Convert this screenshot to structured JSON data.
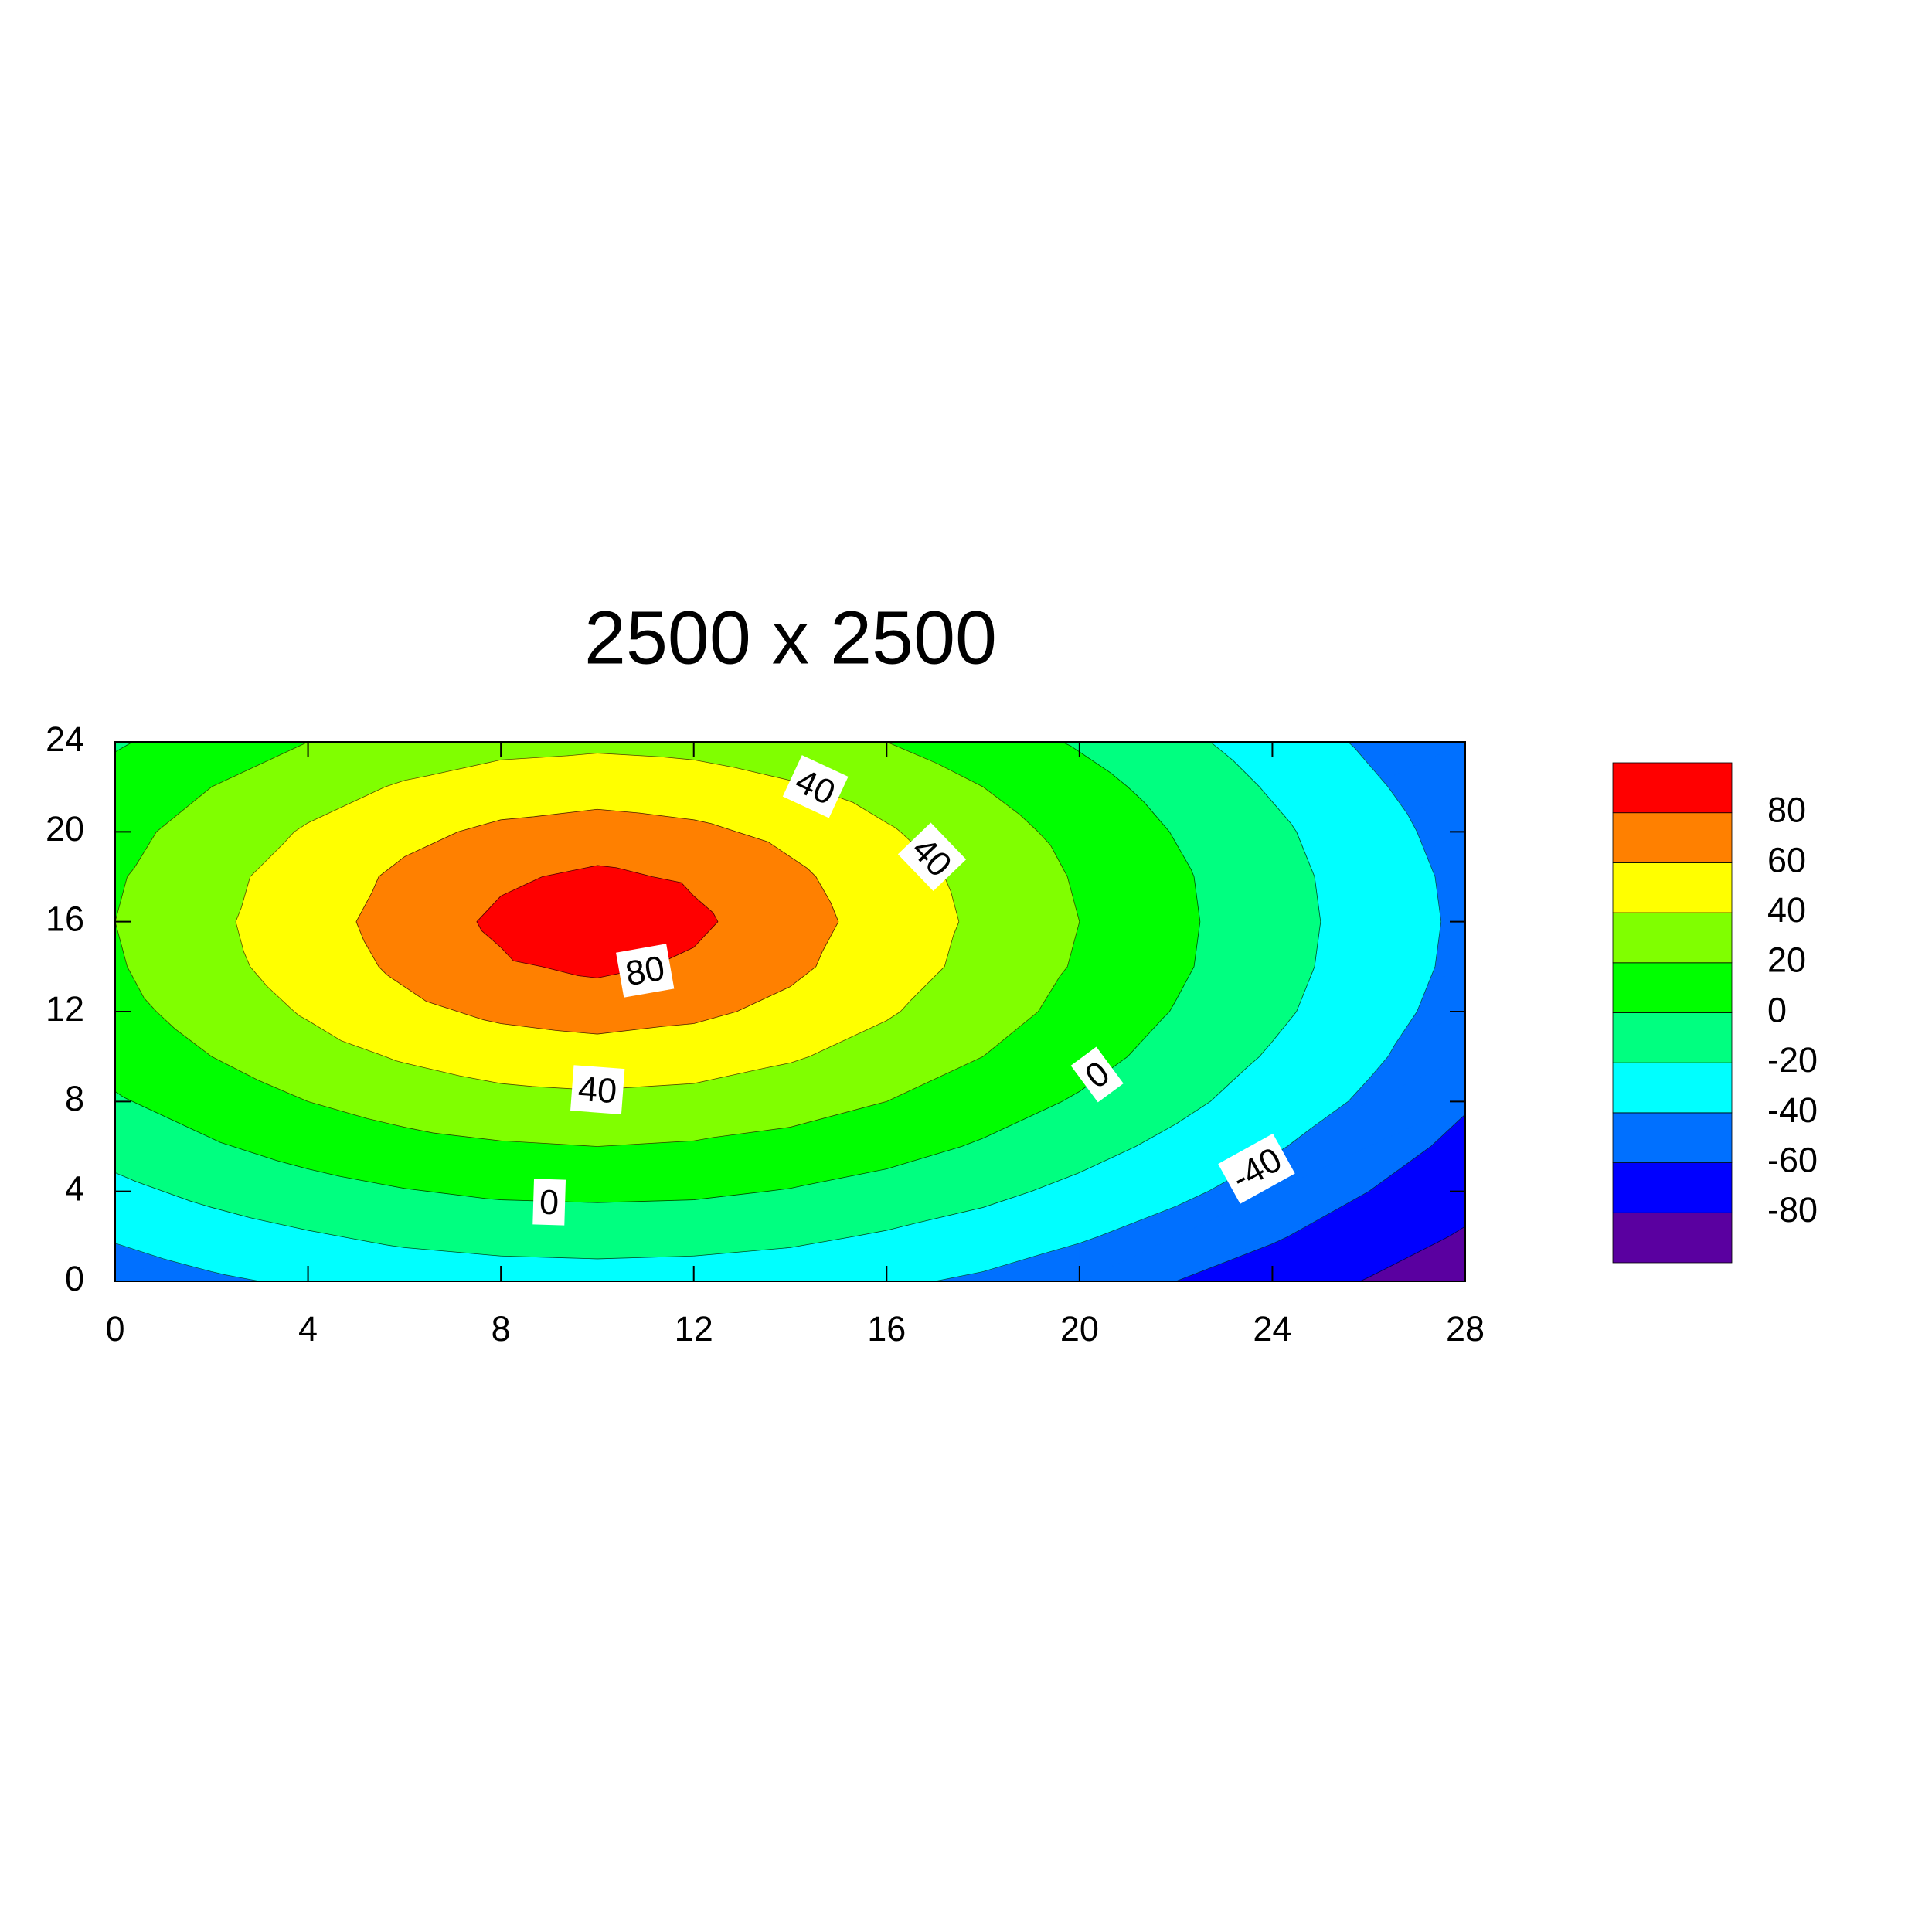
{
  "chart_data": {
    "type": "contour",
    "title": "2500 x 2500",
    "x": [
      0,
      2,
      4,
      6,
      8,
      10,
      12,
      14,
      16,
      18,
      20,
      22,
      24,
      26,
      28
    ],
    "y": [
      0,
      2,
      4,
      6,
      8,
      10,
      12,
      14,
      16,
      18,
      20,
      22,
      24
    ],
    "z": [
      [
        -51,
        -43,
        -37,
        -32,
        -29,
        -28,
        -29,
        -32,
        -37,
        -43,
        -51,
        -60,
        -70,
        -81,
        -93
      ],
      [
        -38,
        -29,
        -22,
        -16,
        -13,
        -12,
        -13,
        -16,
        -22,
        -29,
        -38,
        -48,
        -58,
        -70,
        -82
      ],
      [
        -25,
        -15,
        -7,
        -1,
        3,
        4,
        3,
        -1,
        -7,
        -15,
        -25,
        -36,
        -48,
        -60,
        -73
      ],
      [
        -13,
        -2,
        7,
        14,
        18,
        20,
        18,
        14,
        7,
        -2,
        -13,
        -25,
        -38,
        -51,
        -65
      ],
      [
        -2,
        9,
        20,
        28,
        34,
        36,
        34,
        28,
        20,
        9,
        -2,
        -15,
        -29,
        -43,
        -58
      ],
      [
        7,
        20,
        32,
        42,
        49,
        52,
        49,
        42,
        32,
        20,
        7,
        -7,
        -22,
        -37,
        -52
      ],
      [
        14,
        28,
        42,
        55,
        64,
        68,
        64,
        55,
        42,
        28,
        14,
        -1,
        -16,
        -32,
        -48
      ],
      [
        18,
        34,
        49,
        64,
        77,
        84,
        77,
        64,
        49,
        34,
        18,
        3,
        -13,
        -29,
        -45
      ],
      [
        20,
        36,
        52,
        68,
        84,
        100,
        84,
        68,
        52,
        36,
        20,
        4,
        -12,
        -28,
        -44
      ],
      [
        18,
        34,
        49,
        64,
        77,
        84,
        77,
        64,
        49,
        34,
        18,
        3,
        -13,
        -29,
        -45
      ],
      [
        14,
        28,
        42,
        55,
        64,
        68,
        64,
        55,
        42,
        28,
        14,
        -1,
        -16,
        -32,
        -48
      ],
      [
        7,
        20,
        32,
        42,
        49,
        52,
        49,
        42,
        32,
        20,
        7,
        -7,
        -22,
        -37,
        -52
      ],
      [
        -2,
        9,
        20,
        28,
        34,
        36,
        34,
        28,
        20,
        9,
        -2,
        -15,
        -29,
        -43,
        -58
      ]
    ],
    "levels": [
      -100,
      -80,
      -60,
      -40,
      -20,
      0,
      20,
      40,
      60,
      80,
      100
    ],
    "colors": [
      "#5a00a0",
      "#0000ff",
      "#0070ff",
      "#00ffff",
      "#00ff80",
      "#00ff00",
      "#80ff00",
      "#ffff00",
      "#ff8000",
      "#ff0000"
    ],
    "xlim": [
      0,
      28
    ],
    "ylim": [
      0,
      24
    ],
    "xticks": [
      0,
      4,
      8,
      12,
      16,
      20,
      24,
      28
    ],
    "yticks": [
      0,
      4,
      8,
      12,
      16,
      20,
      24
    ],
    "contour_labels": [
      {
        "value": 40,
        "x": 14.5,
        "y": 21.9
      },
      {
        "value": 40,
        "x": 16.9,
        "y": 18.8
      },
      {
        "value": 80,
        "x": 11.0,
        "y": 13.7
      },
      {
        "value": 40,
        "x": 10.0,
        "y": 8.4
      },
      {
        "value": 0,
        "x": 9.0,
        "y": 3.4
      },
      {
        "value": 0,
        "x": 20.4,
        "y": 9.1
      },
      {
        "value": -40,
        "x": 23.7,
        "y": 4.9
      }
    ]
  }
}
